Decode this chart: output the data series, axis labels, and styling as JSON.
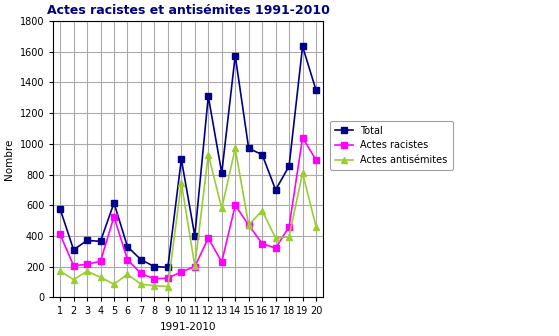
{
  "title": "Actes racistes et antisémites 1991-2010",
  "xlabel": "1991-2010",
  "ylabel": "Nombre",
  "x": [
    1,
    2,
    3,
    4,
    5,
    6,
    7,
    8,
    9,
    10,
    11,
    12,
    13,
    14,
    15,
    16,
    17,
    18,
    19,
    20
  ],
  "total": [
    575,
    310,
    370,
    365,
    615,
    330,
    245,
    200,
    195,
    900,
    400,
    1310,
    810,
    1575,
    970,
    930,
    700,
    855,
    1635,
    1350
  ],
  "actes_racistes": [
    410,
    205,
    215,
    235,
    525,
    245,
    155,
    120,
    125,
    165,
    200,
    385,
    230,
    600,
    470,
    350,
    320,
    460,
    1040,
    895
  ],
  "actes_antisemites": [
    170,
    115,
    170,
    130,
    85,
    150,
    85,
    75,
    70,
    745,
    205,
    930,
    580,
    970,
    470,
    565,
    385,
    395,
    810,
    460
  ],
  "total_color": "#00008B",
  "racistes_color": "#FF00FF",
  "antisemites_color": "#9ACD32",
  "ylim": [
    0,
    1800
  ],
  "yticks": [
    0,
    200,
    400,
    600,
    800,
    1000,
    1200,
    1400,
    1600,
    1800
  ],
  "background_color": "#ffffff",
  "plot_bg_color": "#ffffff",
  "grid_color": "#aaaaaa",
  "title_color": "#000080",
  "legend_labels": [
    "Total",
    "Actes racistes",
    "Actes antisémites"
  ]
}
